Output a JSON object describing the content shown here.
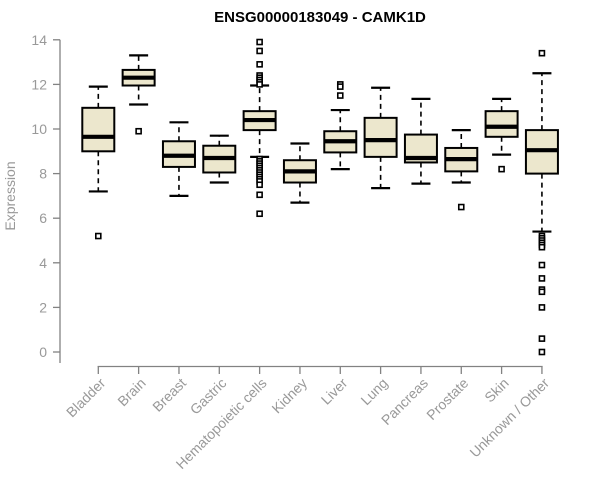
{
  "chart_data": {
    "type": "boxplot",
    "title": "ENSG00000183049 - CAMK1D",
    "xlabel": "",
    "ylabel": "Expression",
    "ylim": [
      0,
      14
    ],
    "yticks": [
      0,
      2,
      4,
      6,
      8,
      10,
      12,
      14
    ],
    "grid": false,
    "legend": "none",
    "categories": [
      "Bladder",
      "Brain",
      "Breast",
      "Gastric",
      "Hematopoietic cells",
      "Kidney",
      "Liver",
      "Lung",
      "Pancreas",
      "Prostate",
      "Skin",
      "Unknown / Other"
    ],
    "series": [
      {
        "name": "Bladder",
        "whisker_low": 7.2,
        "q1": 9.0,
        "median": 9.65,
        "q3": 10.95,
        "whisker_high": 11.9,
        "outliers": [
          5.2
        ]
      },
      {
        "name": "Brain",
        "whisker_low": 11.1,
        "q1": 11.95,
        "median": 12.3,
        "q3": 12.65,
        "whisker_high": 13.3,
        "outliers": [
          9.9
        ]
      },
      {
        "name": "Breast",
        "whisker_low": 7.0,
        "q1": 8.3,
        "median": 8.8,
        "q3": 9.45,
        "whisker_high": 10.3,
        "outliers": []
      },
      {
        "name": "Gastric",
        "whisker_low": 7.6,
        "q1": 8.05,
        "median": 8.7,
        "q3": 9.25,
        "whisker_high": 9.7,
        "outliers": []
      },
      {
        "name": "Hematopoietic cells",
        "whisker_low": 8.75,
        "q1": 9.95,
        "median": 10.4,
        "q3": 10.8,
        "whisker_high": 11.95,
        "outliers": [
          13.9,
          13.5,
          12.9,
          12.4,
          12.3,
          12.2,
          12.1,
          12.0,
          8.65,
          8.55,
          8.45,
          8.35,
          8.25,
          8.15,
          8.05,
          7.95,
          7.85,
          7.75,
          7.65,
          7.5,
          7.05,
          6.2
        ]
      },
      {
        "name": "Kidney",
        "whisker_low": 6.7,
        "q1": 7.6,
        "median": 8.1,
        "q3": 8.6,
        "whisker_high": 9.35,
        "outliers": []
      },
      {
        "name": "Liver",
        "whisker_low": 8.2,
        "q1": 8.95,
        "median": 9.45,
        "q3": 9.9,
        "whisker_high": 10.85,
        "outliers": [
          12.0,
          11.9,
          11.5
        ]
      },
      {
        "name": "Lung",
        "whisker_low": 7.35,
        "q1": 8.75,
        "median": 9.5,
        "q3": 10.5,
        "whisker_high": 11.85,
        "outliers": []
      },
      {
        "name": "Pancreas",
        "whisker_low": 7.55,
        "q1": 8.5,
        "median": 8.7,
        "q3": 9.75,
        "whisker_high": 11.35,
        "outliers": []
      },
      {
        "name": "Prostate",
        "whisker_low": 7.6,
        "q1": 8.1,
        "median": 8.65,
        "q3": 9.15,
        "whisker_high": 9.95,
        "outliers": [
          6.5
        ]
      },
      {
        "name": "Skin",
        "whisker_low": 8.85,
        "q1": 9.65,
        "median": 10.1,
        "q3": 10.8,
        "whisker_high": 11.35,
        "outliers": [
          8.2
        ]
      },
      {
        "name": "Unknown / Other",
        "whisker_low": 5.4,
        "q1": 8.0,
        "median": 9.05,
        "q3": 9.95,
        "whisker_high": 12.5,
        "outliers": [
          13.4,
          5.2,
          5.1,
          5.0,
          4.9,
          4.8,
          4.7,
          3.9,
          3.3,
          2.8,
          2.7,
          2.0,
          0.6,
          0.0
        ]
      }
    ],
    "styles": {
      "box_fill": "#ece7cd",
      "box_stroke": "#000000",
      "median_color": "#000000",
      "whisker_color": "#000000",
      "outlier_color": "#000000",
      "axis_line_color": "#828282",
      "axis_text_color": "#999999",
      "title_color": "#000000",
      "background": "#ffffff"
    }
  }
}
